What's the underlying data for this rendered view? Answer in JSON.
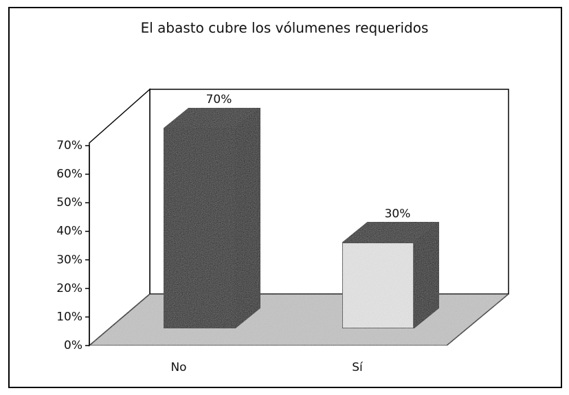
{
  "chart_data": {
    "type": "bar3d",
    "title": "El abasto cubre los vólumenes requeridos",
    "categories": [
      "No",
      "Sí"
    ],
    "values": [
      70,
      30
    ],
    "value_labels": [
      "70%",
      "30%"
    ],
    "colors": [
      "#151515",
      "#e6e6e6"
    ],
    "ylim": [
      0,
      70
    ],
    "yticks": [
      {
        "value": 0,
        "label": "0%"
      },
      {
        "value": 10,
        "label": "10%"
      },
      {
        "value": 20,
        "label": "20%"
      },
      {
        "value": 30,
        "label": "30%"
      },
      {
        "value": 40,
        "label": "40%"
      },
      {
        "value": 50,
        "label": "50%"
      },
      {
        "value": 60,
        "label": "60%"
      },
      {
        "value": 70,
        "label": "70%"
      }
    ],
    "grid": false
  }
}
